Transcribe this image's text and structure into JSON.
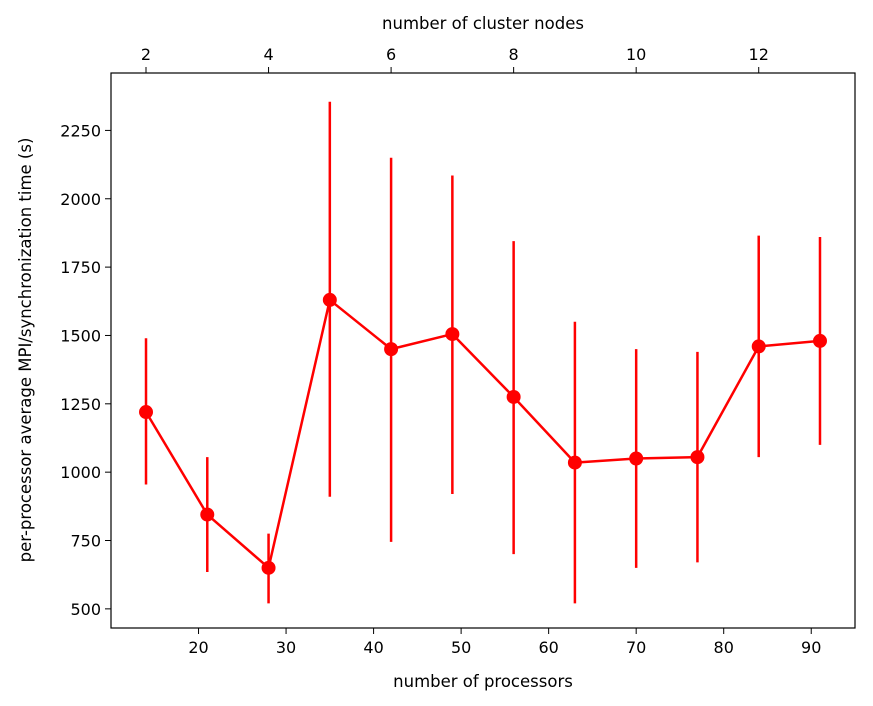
{
  "chart_data": {
    "type": "line",
    "title": "",
    "xlabel": "number of processors",
    "ylabel": "per-processor average MPI/synchronization time (s)",
    "x2label": "number of cluster nodes",
    "xlim": [
      10,
      95
    ],
    "ylim": [
      430,
      2460
    ],
    "x2lim": [
      1.4285714,
      13.5714286
    ],
    "xticks": [
      20,
      30,
      40,
      50,
      60,
      70,
      80,
      90
    ],
    "x2ticks": [
      2,
      4,
      6,
      8,
      10,
      12
    ],
    "yticks": [
      500,
      750,
      1000,
      1250,
      1500,
      1750,
      2000,
      2250
    ],
    "grid": false,
    "legend": "none",
    "color": "#ff0000",
    "series": [
      {
        "x": [
          14,
          21,
          28,
          35,
          42,
          49,
          56,
          63,
          70,
          77,
          84,
          91
        ],
        "y": [
          1220,
          845,
          650,
          1630,
          1450,
          1505,
          1275,
          1035,
          1050,
          1055,
          1460,
          1480
        ],
        "err_low": [
          955,
          635,
          520,
          910,
          745,
          920,
          700,
          520,
          650,
          670,
          1055,
          1100
        ],
        "err_high": [
          1490,
          1055,
          775,
          2355,
          2150,
          2085,
          1845,
          1550,
          1450,
          1440,
          1865,
          1860
        ]
      }
    ]
  }
}
